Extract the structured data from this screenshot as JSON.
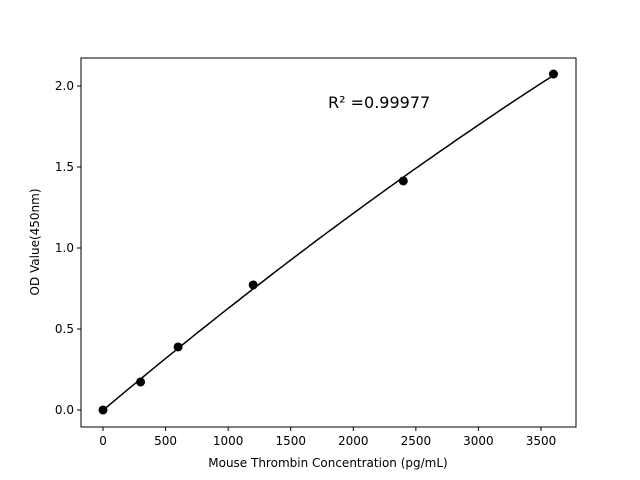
{
  "chart_data": {
    "type": "scatter",
    "title": "",
    "xlabel": "Mouse Thrombin Concentration (pg/mL)",
    "ylabel": "OD Value(450nm)",
    "xlim": [
      -176,
      3780
    ],
    "ylim": [
      -0.105,
      2.173
    ],
    "xticks": [
      0,
      500,
      1000,
      1500,
      2000,
      2500,
      3000,
      3500
    ],
    "yticks": [
      0.0,
      0.5,
      1.0,
      1.5,
      2.0
    ],
    "ytick_labels": [
      "0.0",
      "0.5",
      "1.0",
      "1.5",
      "2.0"
    ],
    "grid": false,
    "points": {
      "x": [
        0,
        300,
        600,
        1200,
        2400,
        3600
      ],
      "y": [
        0.0,
        0.173,
        0.389,
        0.772,
        1.414,
        2.074
      ]
    },
    "fit_line": {
      "type": "curve fit",
      "color": "#000000"
    },
    "annotation": "R² =0.99977",
    "marker_color": "#000000"
  }
}
